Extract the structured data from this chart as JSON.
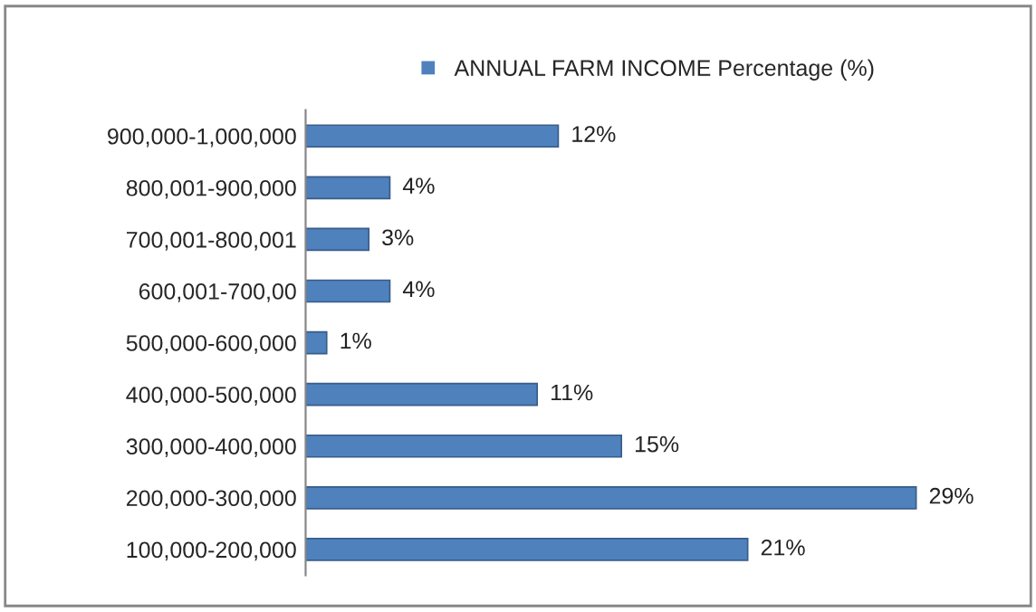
{
  "chart_data": {
    "type": "bar",
    "orientation": "horizontal",
    "categories": [
      "900,000-1,000,000",
      "800,001-900,000",
      "700,001-800,001",
      "600,001-700,00",
      "500,000-600,000",
      "400,000-500,000",
      "300,000-400,000",
      "200,000-300,000",
      "100,000-200,000"
    ],
    "series": [
      {
        "name": "ANNUAL FARM INCOME Percentage (%)",
        "color": "#4f81bd",
        "values": [
          12,
          4,
          3,
          4,
          1,
          11,
          15,
          29,
          21
        ],
        "value_labels": [
          "12%",
          "4%",
          "3%",
          "4%",
          "1%",
          "11%",
          "15%",
          "29%",
          "21%"
        ]
      }
    ],
    "legend": "top",
    "grid": false,
    "tick_labels": "y"
  }
}
